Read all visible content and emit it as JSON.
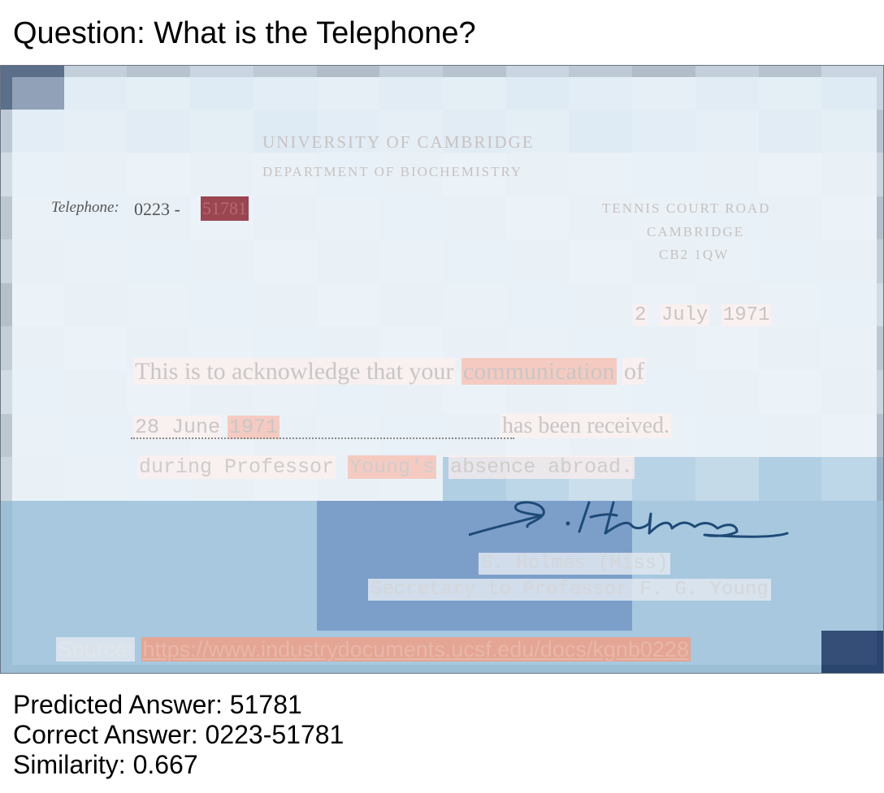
{
  "question": "Question: What is the Telephone?",
  "document": {
    "header_line1": "UNIVERSITY OF CAMBRIDGE",
    "header_line2": "DEPARTMENT OF BIOCHEMISTRY",
    "telephone_label": "Telephone:",
    "telephone_prefix": "0223 -",
    "telephone_number": "51781",
    "address": [
      "TENNIS COURT ROAD",
      "CAMBRIDGE",
      "CB2 1QW"
    ],
    "date": {
      "day": "2",
      "month": "July",
      "year": "1971"
    },
    "body_line1": {
      "a": "This is to acknowledge that your",
      "b": "communication",
      "c": "of"
    },
    "body_line2": {
      "a": "28 June",
      "b": "1971",
      "c": "has been received."
    },
    "body_line3": {
      "a": "during Professor",
      "b": "Young's",
      "c": "absence abroad."
    },
    "signature": "S. Holmes",
    "signatory_name": "S. Holmes (Miss)",
    "signatory_title": "Secretary to Professor F. G. Young",
    "source_label": "Source:",
    "source_url": "https://www.industrydocuments.ucsf.edu/docs/kgnb0228"
  },
  "heatmap_colors": {
    "top": "#dbe8f2",
    "mid": "#e6eff6",
    "low": "#9fc3dc",
    "dark": "#6f96c4",
    "corner": "#1f3c68"
  },
  "results": {
    "predicted": "Predicted Answer: 51781",
    "correct": "Correct Answer: 0223-51781",
    "similarity": "Similarity: 0.667"
  }
}
